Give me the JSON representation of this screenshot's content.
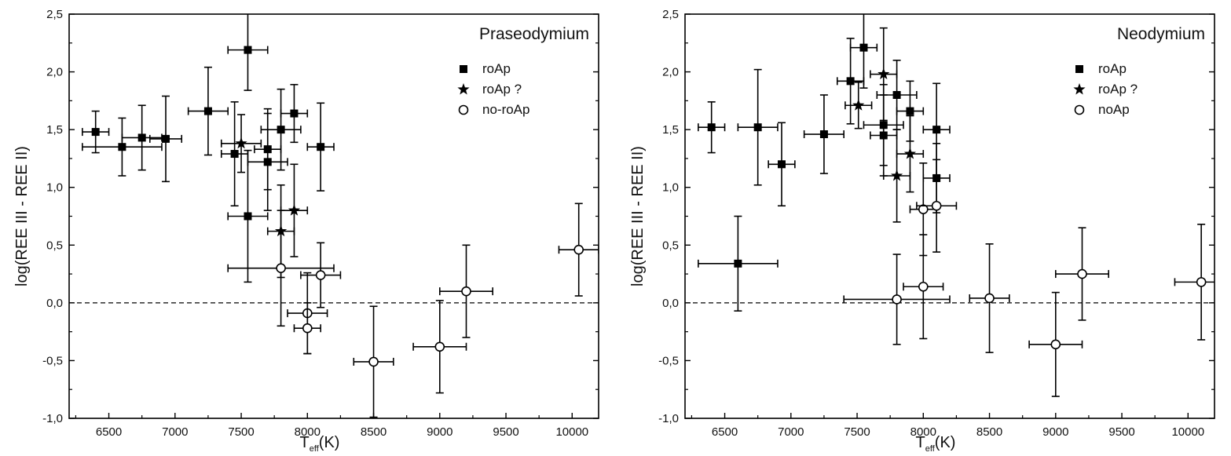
{
  "chart_data": [
    {
      "type": "scatter",
      "title": "Praseodymium",
      "xlabel_main": "T",
      "xlabel_sub": "eff",
      "xlabel_unit": "(K)",
      "ylabel": "log(REE III - REE II)",
      "xlim": [
        6200,
        10200
      ],
      "ylim": [
        -1.0,
        2.5
      ],
      "xticks": [
        6500,
        7000,
        7500,
        8000,
        8500,
        9000,
        9500,
        10000
      ],
      "yticks": [
        -1.0,
        -0.5,
        0.0,
        0.5,
        1.0,
        1.5,
        2.0,
        2.5
      ],
      "ytick_labels": [
        "-1,0",
        "-0,5",
        "0,0",
        "0,5",
        "1,0",
        "1,5",
        "2,0",
        "2,5"
      ],
      "reference_line": 0.0,
      "legend_position": "top-right",
      "legend": [
        {
          "label": "roAp",
          "marker": "square"
        },
        {
          "label": "roAp ?",
          "marker": "star"
        },
        {
          "label": "no-roAp",
          "marker": "circle"
        }
      ],
      "series": [
        {
          "name": "roAp",
          "marker": "square",
          "points": [
            {
              "x": 6400,
              "y": 1.48,
              "xerr": 100,
              "yerr": 0.18
            },
            {
              "x": 6600,
              "y": 1.35,
              "xerr": 300,
              "yerr": 0.25
            },
            {
              "x": 6750,
              "y": 1.43,
              "xerr": 150,
              "yerr": 0.28
            },
            {
              "x": 6930,
              "y": 1.42,
              "xerr": 120,
              "yerr": 0.37
            },
            {
              "x": 7250,
              "y": 1.66,
              "xerr": 150,
              "yerr": 0.38
            },
            {
              "x": 7450,
              "y": 1.29,
              "xerr": 100,
              "yerr": 0.45
            },
            {
              "x": 7550,
              "y": 2.19,
              "xerr": 150,
              "yerr": 0.35
            },
            {
              "x": 7550,
              "y": 0.75,
              "xerr": 150,
              "yerr": 0.57
            },
            {
              "x": 7700,
              "y": 1.33,
              "xerr": 100,
              "yerr": 0.35
            },
            {
              "x": 7700,
              "y": 1.22,
              "xerr": 150,
              "yerr": 0.42
            },
            {
              "x": 7800,
              "y": 1.5,
              "xerr": 150,
              "yerr": 0.35
            },
            {
              "x": 7900,
              "y": 1.64,
              "xerr": 100,
              "yerr": 0.25
            },
            {
              "x": 8100,
              "y": 1.35,
              "xerr": 100,
              "yerr": 0.38
            }
          ]
        },
        {
          "name": "roAp ?",
          "marker": "star",
          "points": [
            {
              "x": 7500,
              "y": 1.38,
              "xerr": 150,
              "yerr": 0.25
            },
            {
              "x": 7800,
              "y": 0.62,
              "xerr": 100,
              "yerr": 0.4
            },
            {
              "x": 7900,
              "y": 0.8,
              "xerr": 100,
              "yerr": 0.4
            }
          ]
        },
        {
          "name": "no-roAp",
          "marker": "circle",
          "points": [
            {
              "x": 7800,
              "y": 0.3,
              "xerr": 400,
              "yerr": 0.5
            },
            {
              "x": 8100,
              "y": 0.24,
              "xerr": 150,
              "yerr": 0.28
            },
            {
              "x": 8000,
              "y": -0.09,
              "xerr": 150,
              "yerr": 0.35
            },
            {
              "x": 8000,
              "y": -0.22,
              "xerr": 100,
              "yerr": 0.22
            },
            {
              "x": 8500,
              "y": -0.51,
              "xerr": 150,
              "yerr": 0.48
            },
            {
              "x": 9000,
              "y": -0.38,
              "xerr": 200,
              "yerr": 0.4
            },
            {
              "x": 9200,
              "y": 0.1,
              "xerr": 200,
              "yerr": 0.4
            },
            {
              "x": 10050,
              "y": 0.46,
              "xerr": 150,
              "yerr": 0.4
            }
          ]
        }
      ]
    },
    {
      "type": "scatter",
      "title": "Neodymium",
      "xlabel_main": "T",
      "xlabel_sub": "eff",
      "xlabel_unit": "(K)",
      "ylabel": "log(REE III - REE II)",
      "xlim": [
        6200,
        10200
      ],
      "ylim": [
        -1.0,
        2.5
      ],
      "xticks": [
        6500,
        7000,
        7500,
        8000,
        8500,
        9000,
        9500,
        10000
      ],
      "yticks": [
        -1.0,
        -0.5,
        0.0,
        0.5,
        1.0,
        1.5,
        2.0,
        2.5
      ],
      "ytick_labels": [
        "-1,0",
        "-0,5",
        "0,0",
        "0,5",
        "1,0",
        "1,5",
        "2,0",
        "2,5"
      ],
      "reference_line": 0.0,
      "legend_position": "top-right",
      "legend": [
        {
          "label": "roAp",
          "marker": "square"
        },
        {
          "label": "roAp ?",
          "marker": "star"
        },
        {
          "label": "noAp",
          "marker": "circle"
        }
      ],
      "series": [
        {
          "name": "roAp",
          "marker": "square",
          "points": [
            {
              "x": 6400,
              "y": 1.52,
              "xerr": 100,
              "yerr": 0.22
            },
            {
              "x": 6750,
              "y": 1.52,
              "xerr": 150,
              "yerr": 0.5
            },
            {
              "x": 6930,
              "y": 1.2,
              "xerr": 100,
              "yerr": 0.36
            },
            {
              "x": 7250,
              "y": 1.46,
              "xerr": 150,
              "yerr": 0.34
            },
            {
              "x": 7450,
              "y": 1.92,
              "xerr": 100,
              "yerr": 0.37
            },
            {
              "x": 7550,
              "y": 2.21,
              "xerr": 100,
              "yerr": 0.35
            },
            {
              "x": 7700,
              "y": 1.54,
              "xerr": 150,
              "yerr": 0.35
            },
            {
              "x": 7700,
              "y": 1.45,
              "xerr": 100,
              "yerr": 0.35
            },
            {
              "x": 7800,
              "y": 1.8,
              "xerr": 150,
              "yerr": 0.3
            },
            {
              "x": 7900,
              "y": 1.66,
              "xerr": 100,
              "yerr": 0.26
            },
            {
              "x": 8100,
              "y": 1.5,
              "xerr": 100,
              "yerr": 0.4
            },
            {
              "x": 8100,
              "y": 1.08,
              "xerr": 100,
              "yerr": 0.3
            },
            {
              "x": 6600,
              "y": 0.34,
              "xerr": 300,
              "yerr": 0.41
            }
          ]
        },
        {
          "name": "roAp ?",
          "marker": "star",
          "points": [
            {
              "x": 7510,
              "y": 1.71,
              "xerr": 100,
              "yerr": 0.2
            },
            {
              "x": 7700,
              "y": 1.98,
              "xerr": 100,
              "yerr": 0.4
            },
            {
              "x": 7900,
              "y": 1.29,
              "xerr": 100,
              "yerr": 0.33
            },
            {
              "x": 7800,
              "y": 1.1,
              "xerr": 100,
              "yerr": 0.4
            }
          ]
        },
        {
          "name": "noAp",
          "marker": "circle",
          "points": [
            {
              "x": 7800,
              "y": 0.03,
              "xerr": 400,
              "yerr": 0.39
            },
            {
              "x": 8000,
              "y": 0.81,
              "xerr": 100,
              "yerr": 0.4
            },
            {
              "x": 8100,
              "y": 0.84,
              "xerr": 150,
              "yerr": 0.4
            },
            {
              "x": 8000,
              "y": 0.14,
              "xerr": 150,
              "yerr": 0.45
            },
            {
              "x": 8500,
              "y": 0.04,
              "xerr": 150,
              "yerr": 0.47
            },
            {
              "x": 9000,
              "y": -0.36,
              "xerr": 200,
              "yerr": 0.45
            },
            {
              "x": 9200,
              "y": 0.25,
              "xerr": 200,
              "yerr": 0.4
            },
            {
              "x": 10100,
              "y": 0.18,
              "xerr": 200,
              "yerr": 0.5
            }
          ]
        }
      ]
    }
  ]
}
